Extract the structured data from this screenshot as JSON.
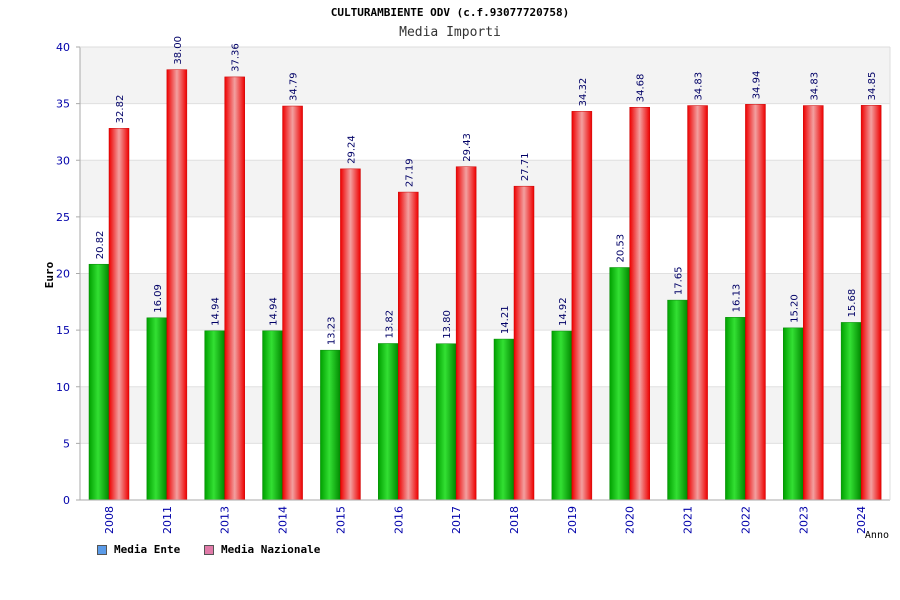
{
  "chart_data": {
    "type": "bar",
    "title": "CULTURAMBIENTE ODV (c.f.93077720758)",
    "subtitle": "Media Importi",
    "ylabel": "Euro",
    "xlabel": "Anno",
    "ylim": [
      0,
      40
    ],
    "yticks": [
      0,
      5,
      10,
      15,
      20,
      25,
      30,
      35,
      40
    ],
    "categories": [
      "2008",
      "2011",
      "2013",
      "2014",
      "2015",
      "2016",
      "2017",
      "2018",
      "2019",
      "2020",
      "2021",
      "2022",
      "2023",
      "2024"
    ],
    "series": [
      {
        "name": "Media Ente",
        "color": "#00b400",
        "values": [
          20.82,
          16.09,
          14.94,
          14.94,
          13.23,
          13.82,
          13.8,
          14.21,
          14.92,
          20.53,
          17.65,
          16.13,
          15.2,
          15.68
        ],
        "labels": [
          "20.82",
          "16.09",
          "14.94",
          "14.94",
          "13.23",
          "13.82",
          "13.80",
          "14.21",
          "14.92",
          "20.53",
          "17.65",
          "16.13",
          "15.20",
          "15.68"
        ]
      },
      {
        "name": "Media Nazionale",
        "color": "#ee0000",
        "values": [
          32.82,
          38.0,
          37.36,
          34.79,
          29.24,
          27.19,
          29.43,
          27.71,
          34.32,
          34.68,
          34.83,
          34.94,
          34.83,
          34.85
        ],
        "labels": [
          "32.82",
          "38.00",
          "37.36",
          "34.79",
          "29.24",
          "27.19",
          "29.43",
          "27.71",
          "34.32",
          "34.68",
          "34.83",
          "34.94",
          "34.83",
          "34.85"
        ]
      }
    ],
    "legend": {
      "position": "bottom-left",
      "items": [
        {
          "label": "Media Ente",
          "color": "#5b9be8"
        },
        {
          "label": "Media Nazionale",
          "color": "#e07aa8"
        }
      ]
    },
    "grid": true
  }
}
